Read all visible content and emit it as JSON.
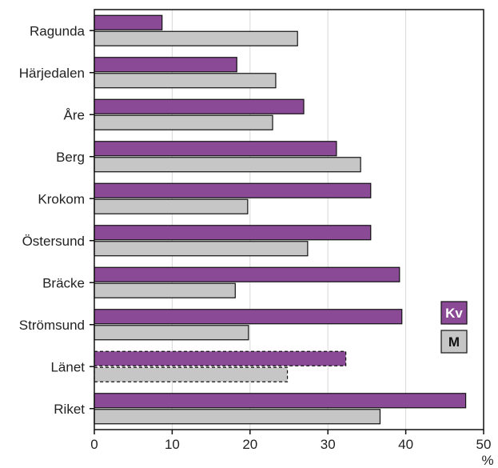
{
  "chart_data": {
    "type": "bar",
    "orientation": "horizontal",
    "categories": [
      "Ragunda",
      "Härjedalen",
      "Åre",
      "Berg",
      "Krokom",
      "Östersund",
      "Bräcke",
      "Strömsund",
      "Länet",
      "Riket"
    ],
    "series": [
      {
        "name": "Kv",
        "color": "#8a4a96",
        "values": [
          8.7,
          18.3,
          26.9,
          31.1,
          35.5,
          35.5,
          39.2,
          39.5,
          32.3,
          47.7
        ]
      },
      {
        "name": "M",
        "color": "#c6c6c6",
        "values": [
          26.1,
          23.3,
          22.9,
          34.2,
          19.7,
          27.4,
          18.1,
          19.8,
          24.8,
          36.7
        ]
      }
    ],
    "dashed_categories": [
      "Länet"
    ],
    "xlim": [
      0,
      50
    ],
    "xticks": [
      "0",
      "10",
      "20",
      "30",
      "40",
      "50"
    ],
    "xunit": "%",
    "grid": true,
    "legend_position": "right",
    "legend": [
      {
        "label": "Kv",
        "bg": "#8a4a96",
        "fg": "#ffffff"
      },
      {
        "label": "M",
        "bg": "#c6c6c6",
        "fg": "#111111"
      }
    ]
  }
}
